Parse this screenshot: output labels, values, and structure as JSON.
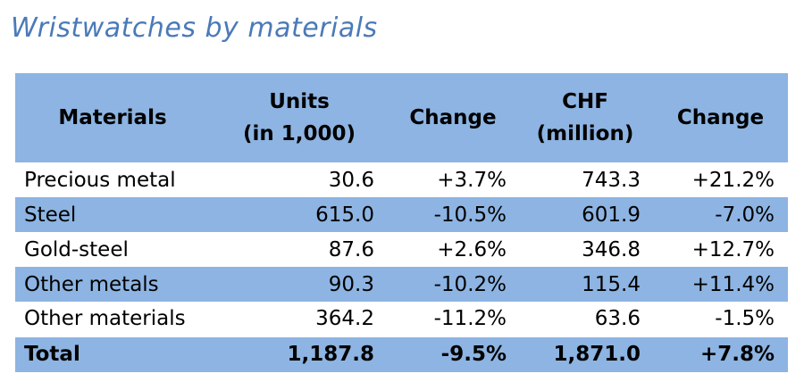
{
  "title": "Wristwatches by materials",
  "colors": {
    "title": "#4a7ab8",
    "band": "#8db4e2",
    "background": "#ffffff"
  },
  "table": {
    "headers": {
      "materials": "Materials",
      "units_line1": "Units",
      "units_line2": "(in 1,000)",
      "change1": "Change",
      "chf_line1": "CHF",
      "chf_line2": "(million)",
      "change2": "Change"
    },
    "rows": [
      {
        "material": "Precious metal",
        "units": "30.6",
        "units_change": "+3.7%",
        "chf": "743.3",
        "chf_change": "+21.2%"
      },
      {
        "material": "Steel",
        "units": "615.0",
        "units_change": "-10.5%",
        "chf": "601.9",
        "chf_change": "-7.0%"
      },
      {
        "material": "Gold-steel",
        "units": "87.6",
        "units_change": "+2.6%",
        "chf": "346.8",
        "chf_change": "+12.7%"
      },
      {
        "material": "Other metals",
        "units": "90.3",
        "units_change": "-10.2%",
        "chf": "115.4",
        "chf_change": "+11.4%"
      },
      {
        "material": "Other materials",
        "units": "364.2",
        "units_change": "-11.2%",
        "chf": "63.6",
        "chf_change": "-1.5%"
      }
    ],
    "total": {
      "material": "Total",
      "units": "1,187.8",
      "units_change": "-9.5%",
      "chf": "1,871.0",
      "chf_change": "+7.8%"
    }
  }
}
